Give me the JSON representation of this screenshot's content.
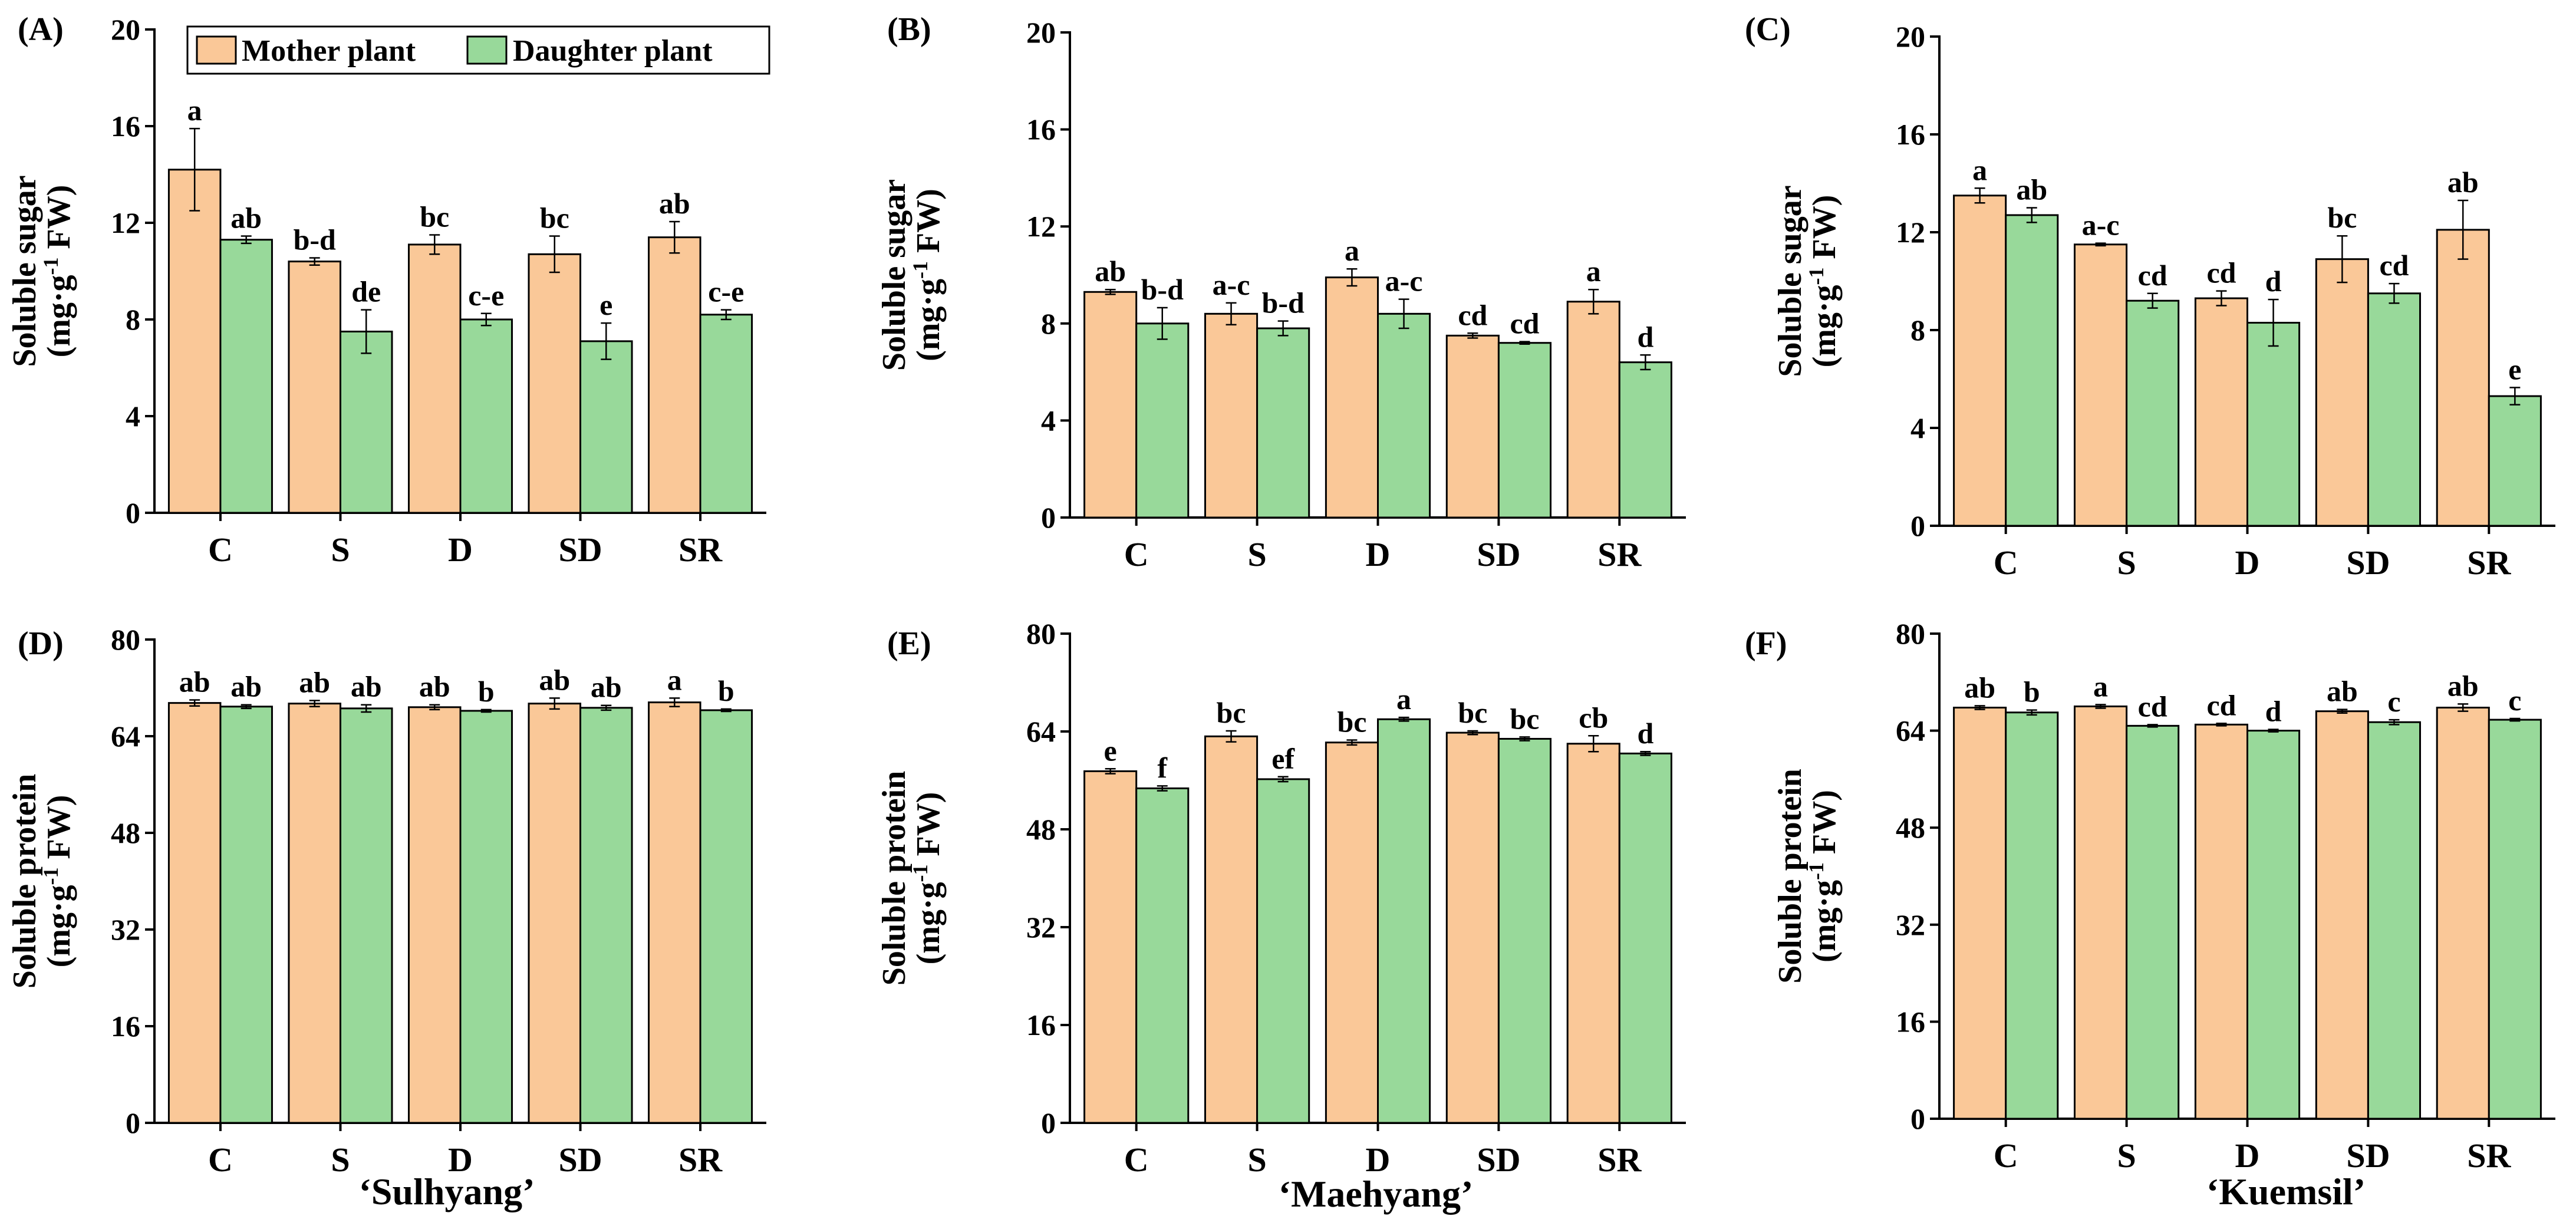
{
  "colors": {
    "mother": "#FAC898",
    "daughter": "#98D99A",
    "axis": "#000000"
  },
  "legend": {
    "mother_label": "Mother plant",
    "daughter_label": "Daughter plant",
    "position": "top"
  },
  "cultivars": [
    "‘Sulhyang’",
    "‘Maehyang’",
    "‘Kuemsil’"
  ],
  "chart_data": [
    {
      "type": "bar",
      "panel_label": "(A)",
      "cultivar": "‘Sulhyang’",
      "ylabel_line1": "Soluble sugar",
      "ylabel_unit_pre": "(mg·g",
      "ylabel_exp": "-1",
      "ylabel_unit_post": " FW)",
      "ylim": [
        0,
        20
      ],
      "yticks": [
        0,
        4,
        8,
        12,
        16,
        20
      ],
      "categories": [
        "C",
        "S",
        "D",
        "SD",
        "SR"
      ],
      "series": [
        {
          "name": "Mother plant",
          "values": [
            14.2,
            10.4,
            11.1,
            10.7,
            11.4
          ],
          "errors": [
            1.7,
            0.15,
            0.4,
            0.75,
            0.65
          ],
          "letters": [
            "a",
            "b-d",
            "bc",
            "bc",
            "ab"
          ]
        },
        {
          "name": "Daughter plant",
          "values": [
            11.3,
            7.5,
            8.0,
            7.1,
            8.2
          ],
          "errors": [
            0.15,
            0.9,
            0.25,
            0.75,
            0.2
          ],
          "letters": [
            "ab",
            "de",
            "c-e",
            "e",
            "c-e"
          ]
        }
      ]
    },
    {
      "type": "bar",
      "panel_label": "(B)",
      "cultivar": "‘Maehyang’",
      "ylabel_line1": "Soluble sugar",
      "ylabel_unit_pre": "(mg·g",
      "ylabel_exp": "-1",
      "ylabel_unit_post": " FW)",
      "ylim": [
        0,
        20
      ],
      "yticks": [
        0,
        4,
        8,
        12,
        16,
        20
      ],
      "categories": [
        "C",
        "S",
        "D",
        "SD",
        "SR"
      ],
      "series": [
        {
          "name": "Mother plant",
          "values": [
            9.3,
            8.4,
            9.9,
            7.5,
            8.9
          ],
          "errors": [
            0.1,
            0.45,
            0.35,
            0.1,
            0.5
          ],
          "letters": [
            "ab",
            "a-c",
            "a",
            "cd",
            "a"
          ]
        },
        {
          "name": "Daughter plant",
          "values": [
            8.0,
            7.8,
            8.4,
            7.2,
            6.4
          ],
          "errors": [
            0.65,
            0.3,
            0.6,
            0.05,
            0.3
          ],
          "letters": [
            "b-d",
            "b-d",
            "a-c",
            "cd",
            "d"
          ]
        }
      ]
    },
    {
      "type": "bar",
      "panel_label": "(C)",
      "cultivar": "‘Kuemsil’",
      "ylabel_line1": "Soluble sugar",
      "ylabel_unit_pre": "(mg·g",
      "ylabel_exp": "-1",
      "ylabel_unit_post": " FW)",
      "ylim": [
        0,
        20
      ],
      "yticks": [
        0,
        4,
        8,
        12,
        16,
        20
      ],
      "categories": [
        "C",
        "S",
        "D",
        "SD",
        "SR"
      ],
      "series": [
        {
          "name": "Mother plant",
          "values": [
            13.5,
            11.5,
            9.3,
            10.9,
            12.1
          ],
          "errors": [
            0.3,
            0.05,
            0.3,
            0.95,
            1.2
          ],
          "letters": [
            "a",
            "a-c",
            "cd",
            "bc",
            "ab"
          ]
        },
        {
          "name": "Daughter plant",
          "values": [
            12.7,
            9.2,
            8.3,
            9.5,
            5.3
          ],
          "errors": [
            0.3,
            0.3,
            0.95,
            0.4,
            0.35
          ],
          "letters": [
            "ab",
            "cd",
            "d",
            "cd",
            "e"
          ]
        }
      ]
    },
    {
      "type": "bar",
      "panel_label": "(D)",
      "cultivar": "‘Sulhyang’",
      "ylabel_line1": "Soluble protein",
      "ylabel_unit_pre": "(mg·g",
      "ylabel_exp": "-1",
      "ylabel_unit_post": " FW)",
      "ylim": [
        0,
        80
      ],
      "yticks": [
        0,
        16,
        32,
        48,
        64,
        80
      ],
      "categories": [
        "C",
        "S",
        "D",
        "SD",
        "SR"
      ],
      "series": [
        {
          "name": "Mother plant",
          "values": [
            69.5,
            69.4,
            68.8,
            69.4,
            69.6
          ],
          "errors": [
            0.5,
            0.5,
            0.4,
            0.9,
            0.7
          ],
          "letters": [
            "ab",
            "ab",
            "ab",
            "ab",
            "a"
          ]
        },
        {
          "name": "Daughter plant",
          "values": [
            68.9,
            68.6,
            68.2,
            68.7,
            68.3
          ],
          "errors": [
            0.3,
            0.6,
            0.2,
            0.4,
            0.2
          ],
          "letters": [
            "ab",
            "ab",
            "b",
            "ab",
            "b"
          ]
        }
      ]
    },
    {
      "type": "bar",
      "panel_label": "(E)",
      "cultivar": "‘Maehyang’",
      "ylabel_line1": "Soluble protein",
      "ylabel_unit_pre": "(mg·g",
      "ylabel_exp": "-1",
      "ylabel_unit_post": " FW)",
      "ylim": [
        0,
        80
      ],
      "yticks": [
        0,
        16,
        32,
        48,
        64,
        80
      ],
      "categories": [
        "C",
        "S",
        "D",
        "SD",
        "SR"
      ],
      "series": [
        {
          "name": "Mother plant",
          "values": [
            57.5,
            63.2,
            62.2,
            63.8,
            62.0
          ],
          "errors": [
            0.4,
            0.9,
            0.4,
            0.3,
            1.3
          ],
          "letters": [
            "e",
            "bc",
            "bc",
            "bc",
            "cb"
          ]
        },
        {
          "name": "Daughter plant",
          "values": [
            54.7,
            56.2,
            66.0,
            62.8,
            60.4
          ],
          "errors": [
            0.4,
            0.4,
            0.3,
            0.3,
            0.3
          ],
          "letters": [
            "f",
            "ef",
            "a",
            "bc",
            "d"
          ]
        }
      ]
    },
    {
      "type": "bar",
      "panel_label": "(F)",
      "cultivar": "‘Kuemsil’",
      "ylabel_line1": "Soluble protein",
      "ylabel_unit_pre": "(mg·g",
      "ylabel_exp": "-1",
      "ylabel_unit_post": " FW)",
      "ylim": [
        0,
        80
      ],
      "yticks": [
        0,
        16,
        32,
        48,
        64,
        80
      ],
      "categories": [
        "C",
        "S",
        "D",
        "SD",
        "SR"
      ],
      "series": [
        {
          "name": "Mother plant",
          "values": [
            67.8,
            68.0,
            65.0,
            67.2,
            67.8
          ],
          "errors": [
            0.3,
            0.3,
            0.2,
            0.3,
            0.6
          ],
          "letters": [
            "ab",
            "a",
            "cd",
            "ab",
            "ab"
          ]
        },
        {
          "name": "Daughter plant",
          "values": [
            67.0,
            64.8,
            64.0,
            65.4,
            65.8
          ],
          "errors": [
            0.4,
            0.2,
            0.2,
            0.4,
            0.2
          ],
          "letters": [
            "b",
            "cd",
            "d",
            "c",
            "c"
          ]
        }
      ]
    }
  ]
}
